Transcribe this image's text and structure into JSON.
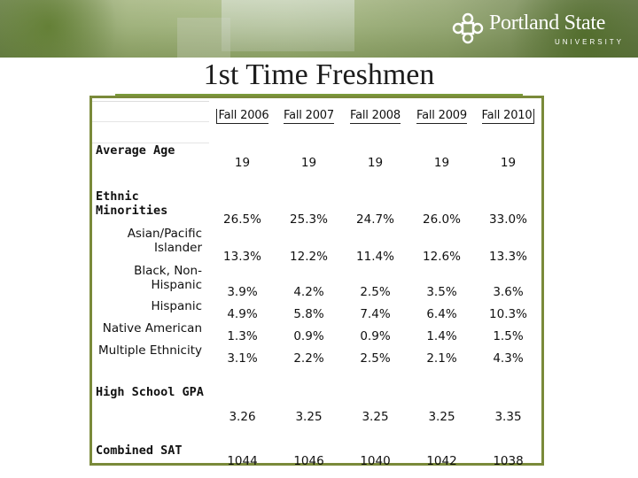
{
  "header": {
    "logo_name": "Portland State",
    "logo_sub": "UNIVERSITY"
  },
  "title": "1st Time Freshmen",
  "table": {
    "columns": [
      "Fall 2006",
      "Fall 2007",
      "Fall 2008",
      "Fall 2009",
      "Fall 2010"
    ],
    "rows": [
      {
        "label": "Average Age",
        "values": [
          "19",
          "19",
          "19",
          "19",
          "19"
        ]
      },
      {
        "label": "Ethnic Minorities",
        "values": [
          "26.5%",
          "25.3%",
          "24.7%",
          "26.0%",
          "33.0%"
        ]
      },
      {
        "label": "Asian/Pacific Islander",
        "values": [
          "13.3%",
          "12.2%",
          "11.4%",
          "12.6%",
          "13.3%"
        ]
      },
      {
        "label": "Black, Non-Hispanic",
        "values": [
          "3.9%",
          "4.2%",
          "2.5%",
          "3.5%",
          "3.6%"
        ]
      },
      {
        "label": "Hispanic",
        "values": [
          "4.9%",
          "5.8%",
          "7.4%",
          "6.4%",
          "10.3%"
        ]
      },
      {
        "label": "Native American",
        "values": [
          "1.3%",
          "0.9%",
          "0.9%",
          "1.4%",
          "1.5%"
        ]
      },
      {
        "label": "Multiple Ethnicity",
        "values": [
          "3.1%",
          "2.2%",
          "2.5%",
          "2.1%",
          "4.3%"
        ]
      },
      {
        "label": "High School GPA",
        "values": [
          "3.26",
          "3.25",
          "3.25",
          "3.25",
          "3.35"
        ]
      },
      {
        "label": "Combined SAT",
        "values": [
          "1044",
          "1046",
          "1040",
          "1042",
          "1038"
        ]
      }
    ]
  }
}
